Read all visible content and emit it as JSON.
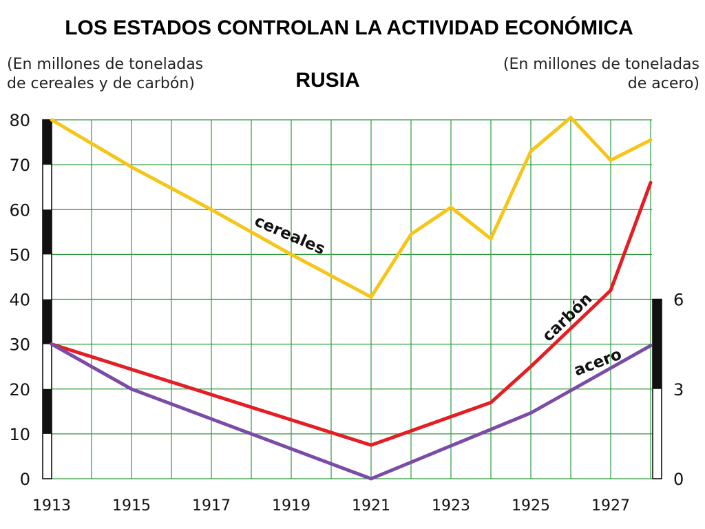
{
  "chart_data": {
    "type": "line",
    "title": "LOS ESTADOS CONTROLAN LA ACTIVIDAD ECONÓMICA",
    "subtitle": "RUSIA",
    "left_axis_note": [
      "(En millones de toneladas",
      "de cereales y de carbón)"
    ],
    "right_axis_note": [
      "(En millones de toneladas",
      "de acero)"
    ],
    "x_ticks": [
      1913,
      1915,
      1917,
      1919,
      1921,
      1923,
      1925,
      1927
    ],
    "xlim": [
      1913,
      1928.5
    ],
    "ylim": [
      0,
      80
    ],
    "y_ticks": [
      0,
      10,
      20,
      30,
      40,
      50,
      60,
      70,
      80
    ],
    "y2lim": [
      0,
      6
    ],
    "y2_ticks": [
      0,
      3,
      6
    ],
    "grid": true,
    "series": [
      {
        "name": "cereales",
        "axis": "left",
        "color": "#f5c518",
        "points": [
          [
            1913,
            80
          ],
          [
            1915,
            69.5
          ],
          [
            1917,
            60
          ],
          [
            1919,
            50
          ],
          [
            1921,
            40.5
          ],
          [
            1922,
            54.5
          ],
          [
            1923,
            60.5
          ],
          [
            1924,
            53.5
          ],
          [
            1925,
            73
          ],
          [
            1926,
            80.5
          ],
          [
            1927,
            71
          ],
          [
            1928,
            75.5
          ]
        ]
      },
      {
        "name": "carbón",
        "axis": "left",
        "color": "#e31e24",
        "points": [
          [
            1913,
            30
          ],
          [
            1921,
            7.5
          ],
          [
            1924,
            17
          ],
          [
            1925,
            25
          ],
          [
            1927,
            42
          ],
          [
            1928,
            66
          ]
        ]
      },
      {
        "name": "acero",
        "axis": "right",
        "color": "#7b4ca6",
        "points": [
          [
            1913,
            4.5
          ],
          [
            1915,
            3
          ],
          [
            1921,
            0
          ],
          [
            1925,
            2.2
          ],
          [
            1928,
            4.45
          ]
        ]
      }
    ]
  }
}
